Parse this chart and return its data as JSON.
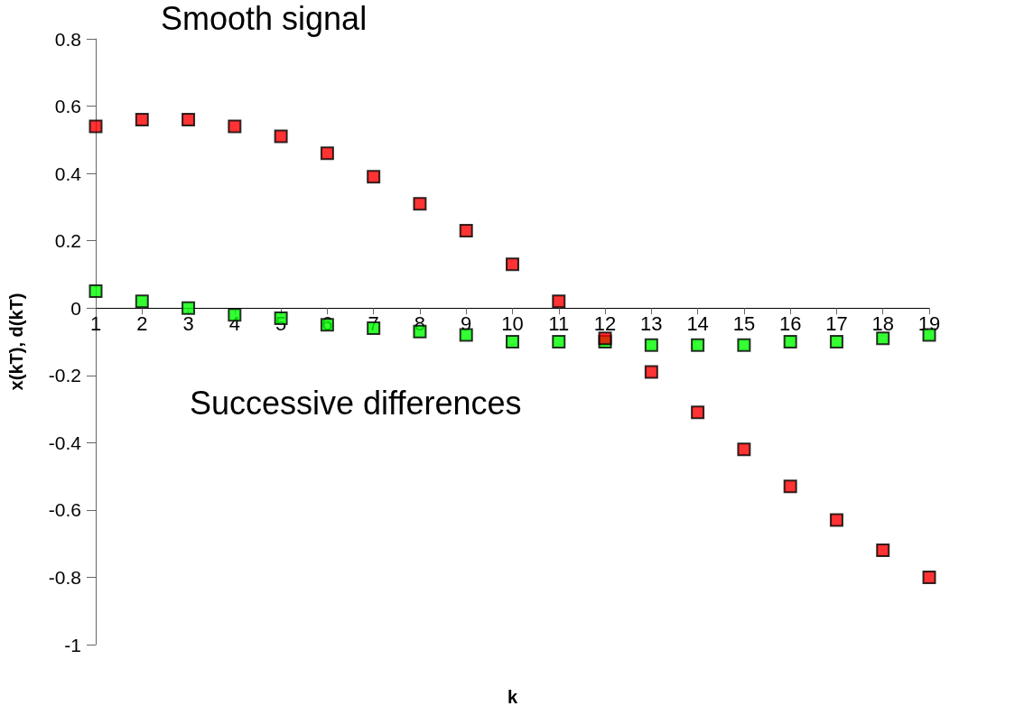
{
  "chart_data": {
    "type": "scatter",
    "xlabel": "k",
    "ylabel": "x(kT), d(kT)",
    "x": [
      1,
      2,
      3,
      4,
      5,
      6,
      7,
      8,
      9,
      10,
      11,
      12,
      13,
      14,
      15,
      16,
      17,
      18,
      19
    ],
    "series": [
      {
        "name": "Smooth signal",
        "color": "#ff0000",
        "values": [
          0.54,
          0.56,
          0.56,
          0.54,
          0.51,
          0.46,
          0.39,
          0.31,
          0.23,
          0.13,
          0.02,
          -0.09,
          -0.19,
          -0.31,
          -0.42,
          -0.53,
          -0.63,
          -0.72,
          -0.8
        ]
      },
      {
        "name": "Successive differences",
        "color": "#00ff00",
        "values": [
          0.05,
          0.02,
          0.0,
          -0.02,
          -0.03,
          -0.05,
          -0.06,
          -0.07,
          -0.08,
          -0.1,
          -0.1,
          -0.1,
          -0.11,
          -0.11,
          -0.11,
          -0.1,
          -0.1,
          -0.09,
          -0.08
        ]
      }
    ],
    "xlim": [
      1,
      19
    ],
    "xticks": [
      1,
      2,
      3,
      4,
      5,
      6,
      7,
      8,
      9,
      10,
      11,
      12,
      13,
      14,
      15,
      16,
      17,
      18,
      19
    ],
    "ylim": [
      -1,
      0.8
    ],
    "yticks": [
      -1,
      -0.8,
      -0.6,
      -0.4,
      -0.2,
      0,
      0.2,
      0.4,
      0.6,
      0.8
    ],
    "grid": false,
    "legend": false,
    "marker": "square"
  }
}
